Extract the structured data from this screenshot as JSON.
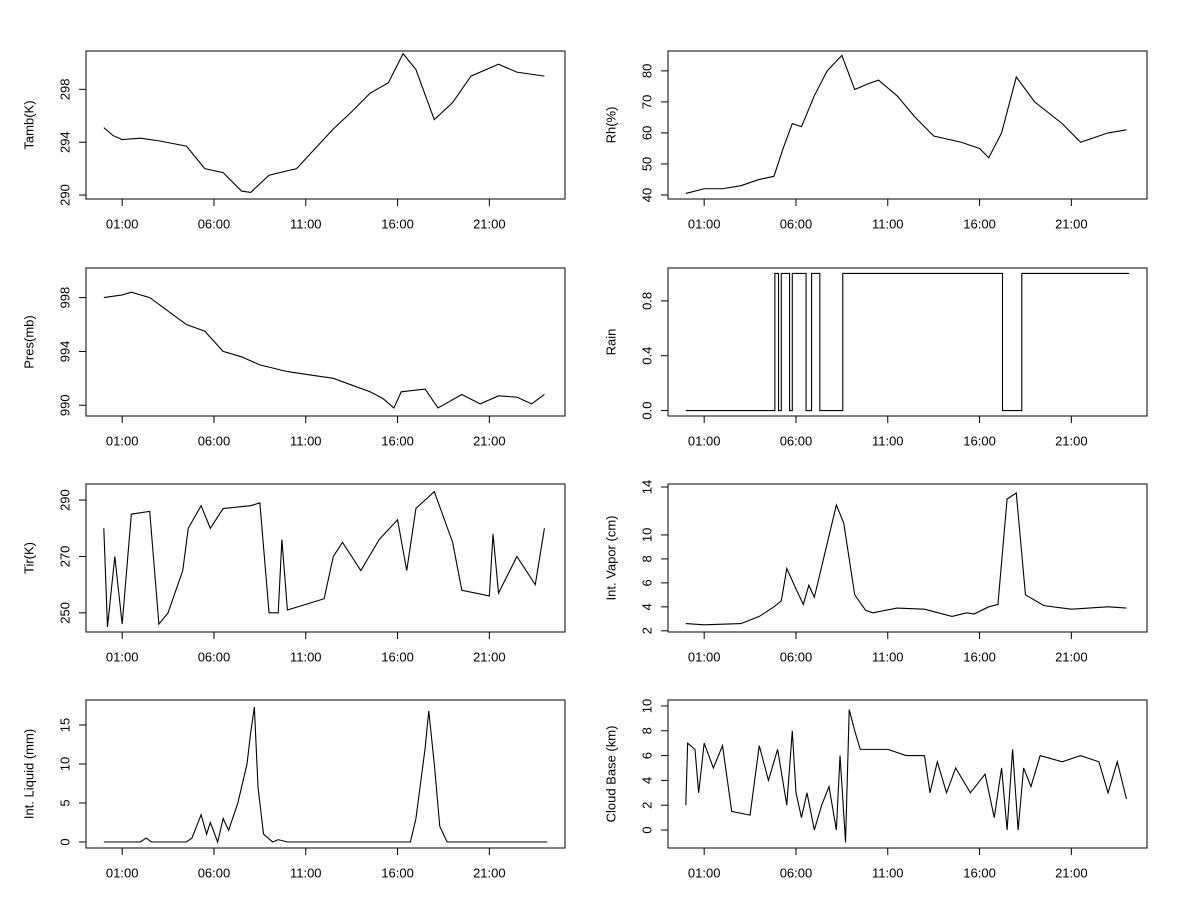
{
  "chart_data": [
    {
      "type": "line",
      "ylabel": "Tamb(K)",
      "color": "#000000",
      "x": [
        0,
        0.5,
        1,
        2,
        3,
        4.5,
        5.5,
        6.5,
        7.5,
        8,
        9,
        10.5,
        11.5,
        12.5,
        13.5,
        14.5,
        15.5,
        16.3,
        17,
        18,
        19,
        20,
        21.5,
        22.5,
        24
      ],
      "values": [
        295.1,
        294.5,
        294.2,
        294.3,
        294.1,
        293.7,
        292,
        291.7,
        290.3,
        290.2,
        291.5,
        292,
        293.5,
        295,
        296.3,
        297.7,
        298.5,
        300.7,
        299.5,
        295.7,
        297,
        299,
        299.9,
        299.3,
        299
      ],
      "xlim": [
        -0.97,
        25.12
      ],
      "ylim": [
        289.7,
        300.9
      ],
      "xticks": [
        {
          "value": 1,
          "label": "01:00"
        },
        {
          "value": 6,
          "label": "06:00"
        },
        {
          "value": 11,
          "label": "11:00"
        },
        {
          "value": 16,
          "label": "16:00"
        },
        {
          "value": 21,
          "label": "21:00"
        }
      ],
      "yticks": [
        290,
        294,
        298
      ]
    },
    {
      "type": "line",
      "ylabel": "Rh(%)",
      "color": "#000000",
      "x": [
        0,
        1,
        2,
        3,
        4,
        4.8,
        5.3,
        5.8,
        6.3,
        7,
        7.7,
        8.5,
        9.2,
        10,
        10.5,
        11.5,
        12.5,
        13.5,
        15,
        16,
        16.5,
        17.2,
        18,
        19,
        20.5,
        21.5,
        23,
        24
      ],
      "values": [
        40.5,
        42,
        42,
        43,
        45,
        46,
        55,
        63,
        62,
        72,
        80,
        85,
        74,
        76,
        77,
        72,
        65,
        59,
        57,
        55,
        52,
        60,
        78,
        70,
        63,
        57,
        60,
        61
      ],
      "xlim": [
        -0.97,
        25.12
      ],
      "ylim": [
        38.7,
        86.4
      ],
      "xticks": [
        {
          "value": 1,
          "label": "01:00"
        },
        {
          "value": 6,
          "label": "06:00"
        },
        {
          "value": 11,
          "label": "11:00"
        },
        {
          "value": 16,
          "label": "16:00"
        },
        {
          "value": 21,
          "label": "21:00"
        }
      ],
      "yticks": [
        40,
        50,
        60,
        70,
        80
      ]
    },
    {
      "type": "line",
      "ylabel": "Pres(mb)",
      "color": "#000000",
      "x": [
        0,
        1,
        1.5,
        2.5,
        3.5,
        4.5,
        5.5,
        6.5,
        7.5,
        8.5,
        10,
        11,
        12.5,
        13.5,
        14.5,
        15.2,
        15.8,
        16.2,
        17.5,
        18.2,
        19.5,
        20.5,
        21.5,
        22.5,
        23.3,
        24
      ],
      "values": [
        998,
        998.2,
        998.4,
        998,
        997,
        996,
        995.5,
        994,
        993.6,
        993,
        992.5,
        992.3,
        992,
        991.5,
        991,
        990.5,
        989.8,
        991,
        991.2,
        989.8,
        990.8,
        990.1,
        990.7,
        990.6,
        990.1,
        990.8
      ],
      "xlim": [
        -0.97,
        25.12
      ],
      "ylim": [
        989.2,
        1000.2
      ],
      "xticks": [
        {
          "value": 1,
          "label": "01:00"
        },
        {
          "value": 6,
          "label": "06:00"
        },
        {
          "value": 11,
          "label": "11:00"
        },
        {
          "value": 16,
          "label": "16:00"
        },
        {
          "value": 21,
          "label": "21:00"
        }
      ],
      "yticks": [
        990,
        994,
        998
      ]
    },
    {
      "type": "line",
      "ylabel": "Rain",
      "color": "#000000",
      "x": [
        0,
        4.85,
        4.85,
        5.05,
        5.05,
        5.2,
        5.2,
        5.65,
        5.65,
        5.8,
        5.8,
        6.55,
        6.55,
        6.85,
        6.85,
        7.3,
        7.3,
        8.55,
        8.55,
        17.25,
        17.25,
        18.3,
        18.3,
        24.15
      ],
      "values": [
        0,
        0,
        1,
        1,
        0,
        0,
        1,
        1,
        0,
        0,
        1,
        1,
        0,
        0,
        1,
        1,
        0,
        0,
        1,
        1,
        0,
        0,
        1,
        1
      ],
      "xlim": [
        -0.97,
        25.12
      ],
      "ylim": [
        -0.04,
        1.04
      ],
      "xticks": [
        {
          "value": 1,
          "label": "01:00"
        },
        {
          "value": 6,
          "label": "06:00"
        },
        {
          "value": 11,
          "label": "11:00"
        },
        {
          "value": 16,
          "label": "16:00"
        },
        {
          "value": 21,
          "label": "21:00"
        }
      ],
      "yticks": [
        {
          "value": 0,
          "label": "0.0"
        },
        0.4,
        0.8
      ]
    },
    {
      "type": "line",
      "ylabel": "Tir(K)",
      "color": "#000000",
      "x": [
        0,
        0.2,
        0.6,
        1,
        1.5,
        2.5,
        3,
        3.5,
        4.3,
        4.6,
        5.3,
        5.8,
        6.5,
        8,
        8.5,
        9,
        9.5,
        9.7,
        10,
        11,
        12,
        12.5,
        13,
        14,
        15,
        16,
        16.5,
        17,
        18,
        19,
        19.5,
        21,
        21.2,
        21.5,
        22.5,
        23.5,
        24
      ],
      "values": [
        280,
        245,
        270,
        246,
        285,
        286,
        246,
        250,
        265,
        280,
        288,
        280,
        287,
        288,
        289,
        250,
        250,
        276,
        251,
        253,
        255,
        270,
        275,
        265,
        276,
        283,
        265,
        287,
        293,
        275,
        258,
        256,
        278,
        257,
        270,
        260,
        280
      ],
      "xlim": [
        -0.97,
        25.12
      ],
      "ylim": [
        243.2,
        295.7
      ],
      "xticks": [
        {
          "value": 1,
          "label": "01:00"
        },
        {
          "value": 6,
          "label": "06:00"
        },
        {
          "value": 11,
          "label": "11:00"
        },
        {
          "value": 16,
          "label": "16:00"
        },
        {
          "value": 21,
          "label": "21:00"
        }
      ],
      "yticks": [
        250,
        270,
        290
      ]
    },
    {
      "type": "line",
      "ylabel": "Int. Vapor (cm)",
      "color": "#000000",
      "x": [
        0,
        1,
        3,
        4,
        4.8,
        5.2,
        5.5,
        6,
        6.4,
        6.7,
        7,
        7.5,
        8.2,
        8.6,
        9.2,
        9.8,
        10.2,
        11.5,
        13,
        14.5,
        15.3,
        15.7,
        16.5,
        17,
        17.5,
        18,
        18.5,
        19.5,
        21,
        23,
        24
      ],
      "values": [
        2.6,
        2.5,
        2.6,
        3.2,
        4,
        4.5,
        7.2,
        5.5,
        4.2,
        5.8,
        4.8,
        8,
        12.5,
        11,
        5,
        3.7,
        3.5,
        3.9,
        3.8,
        3.2,
        3.5,
        3.4,
        4,
        4.2,
        13,
        13.5,
        5,
        4.1,
        3.8,
        4,
        3.9
      ],
      "xlim": [
        -0.97,
        25.12
      ],
      "ylim": [
        1.9,
        14.25
      ],
      "xticks": [
        {
          "value": 1,
          "label": "01:00"
        },
        {
          "value": 6,
          "label": "06:00"
        },
        {
          "value": 11,
          "label": "11:00"
        },
        {
          "value": 16,
          "label": "16:00"
        },
        {
          "value": 21,
          "label": "21:00"
        }
      ],
      "yticks": [
        2,
        4,
        6,
        8,
        10,
        14
      ]
    },
    {
      "type": "line",
      "ylabel": "Int. Liquid (mm)",
      "color": "#000000",
      "x": [
        0,
        2,
        2.3,
        2.6,
        4.5,
        4.8,
        5.3,
        5.6,
        5.8,
        6.2,
        6.5,
        6.8,
        7.3,
        7.8,
        8,
        8.2,
        8.4,
        8.7,
        9.2,
        9.5,
        10,
        16.7,
        17,
        17.5,
        17.7,
        18,
        18.3,
        18.7,
        24.15
      ],
      "values": [
        0,
        0,
        0.5,
        0,
        0,
        0.5,
        3.5,
        1,
        2.5,
        0,
        3,
        1.5,
        5,
        10,
        14,
        17.3,
        7,
        1,
        0,
        0.3,
        0,
        0,
        3,
        12,
        16.8,
        10,
        2,
        0,
        0
      ],
      "xlim": [
        -0.97,
        25.12
      ],
      "ylim": [
        -0.77,
        18.2
      ],
      "xticks": [
        {
          "value": 1,
          "label": "01:00"
        },
        {
          "value": 6,
          "label": "06:00"
        },
        {
          "value": 11,
          "label": "11:00"
        },
        {
          "value": 16,
          "label": "16:00"
        },
        {
          "value": 21,
          "label": "21:00"
        }
      ],
      "yticks": [
        0,
        5,
        10,
        15
      ]
    },
    {
      "type": "line",
      "ylabel": "Cloud Base (km)",
      "color": "#000000",
      "x": [
        0,
        0.1,
        0.5,
        0.7,
        1,
        1.5,
        2,
        2.5,
        3.5,
        4,
        4.5,
        5,
        5.5,
        5.8,
        6,
        6.3,
        6.6,
        7,
        7.4,
        7.8,
        8.2,
        8.4,
        8.7,
        8.9,
        9.2,
        9.5,
        11,
        12,
        13,
        13.3,
        13.7,
        14.2,
        14.7,
        15.5,
        16.3,
        16.8,
        17.2,
        17.5,
        17.8,
        18.1,
        18.4,
        18.8,
        19.3,
        20.5,
        21.5,
        22.5,
        23,
        23.5,
        24
      ],
      "values": [
        2,
        7,
        6.5,
        3,
        7,
        5,
        6.8,
        1.5,
        1.2,
        6.8,
        4,
        6.5,
        2,
        8,
        3,
        1,
        3,
        0,
        2,
        3.5,
        0,
        6,
        -1,
        9.7,
        8,
        6.5,
        6.5,
        6,
        6,
        3,
        5.5,
        3,
        5,
        3,
        4.5,
        1,
        5,
        0,
        6.5,
        0,
        5,
        3.5,
        6,
        5.5,
        6,
        5.5,
        3,
        5.5,
        2.5
      ],
      "xlim": [
        -0.97,
        25.12
      ],
      "ylim": [
        -1.45,
        10.48
      ],
      "xticks": [
        {
          "value": 1,
          "label": "01:00"
        },
        {
          "value": 6,
          "label": "06:00"
        },
        {
          "value": 11,
          "label": "11:00"
        },
        {
          "value": 16,
          "label": "16:00"
        },
        {
          "value": 21,
          "label": "21:00"
        }
      ],
      "yticks": [
        0,
        2,
        4,
        6,
        8,
        10
      ]
    }
  ]
}
